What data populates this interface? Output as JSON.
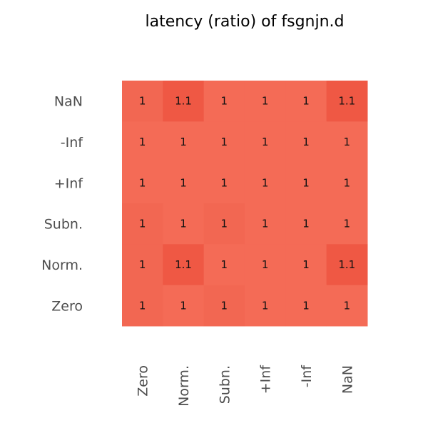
{
  "chart_data": {
    "type": "heatmap",
    "title": "latency (ratio) of fsgnjn.d",
    "xlabel": "",
    "ylabel": "",
    "x_categories": [
      "Zero",
      "Norm.",
      "Subn.",
      "+Inf",
      "-Inf",
      "NaN"
    ],
    "y_categories": [
      "NaN",
      "-Inf",
      "+Inf",
      "Subn.",
      "Norm.",
      "Zero"
    ],
    "values": [
      [
        1.0,
        1.1,
        1.0,
        1.0,
        1.0,
        1.1
      ],
      [
        1.0,
        1.0,
        1.0,
        1.0,
        1.0,
        1.0
      ],
      [
        1.0,
        1.0,
        1.0,
        1.0,
        1.0,
        1.0
      ],
      [
        1.0,
        1.0,
        1.0,
        1.0,
        1.0,
        1.0
      ],
      [
        1.0,
        1.1,
        1.0,
        1.0,
        1.0,
        1.1
      ],
      [
        1.0,
        1.0,
        1.0,
        1.0,
        1.0,
        1.0
      ]
    ],
    "labels": [
      [
        "1",
        "1.1",
        "1",
        "1",
        "1",
        "1.1"
      ],
      [
        "1",
        "1",
        "1",
        "1",
        "1",
        "1"
      ],
      [
        "1",
        "1",
        "1",
        "1",
        "1",
        "1"
      ],
      [
        "1",
        "1",
        "1",
        "1",
        "1",
        "1"
      ],
      [
        "1",
        "1.1",
        "1",
        "1",
        "1",
        "1.1"
      ],
      [
        "1",
        "1",
        "1",
        "1",
        "1",
        "1"
      ]
    ],
    "colors": {
      "base": "#f46b56",
      "high": "#ef5844",
      "subtle": "#f26752"
    },
    "legend": "none",
    "grid": false
  }
}
